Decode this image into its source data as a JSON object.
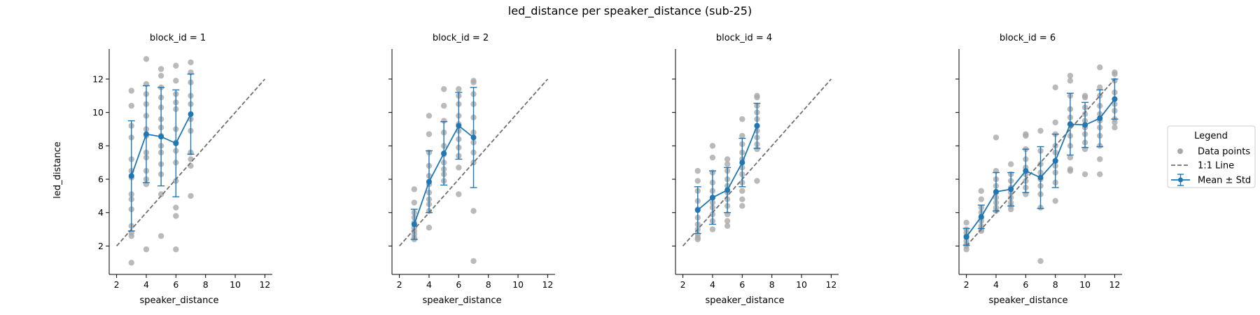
{
  "figure": {
    "title": "led_distance per speaker_distance (sub-25)"
  },
  "legend": {
    "title": "Legend",
    "placement": "right",
    "entries": [
      {
        "label": "Data points",
        "kind": "points",
        "color": "#a9a9a9"
      },
      {
        "label": "1:1 Line",
        "kind": "dashed-line",
        "color": "#707070"
      },
      {
        "label": "Mean ± Std",
        "kind": "errorbar-line",
        "color": "#1f77b4"
      }
    ]
  },
  "colors": {
    "points": "#a9a9a9",
    "identity_line": "#707070",
    "mean": "#1f77b4"
  },
  "chart_data": [
    {
      "type": "scatter",
      "title": "block_id = 1",
      "xlabel": "speaker_distance",
      "ylabel": "led_distance",
      "xlim": [
        1.5,
        12.5
      ],
      "ylim": [
        0.3,
        13.8
      ],
      "xticks": [
        2,
        4,
        6,
        8,
        10,
        12
      ],
      "yticks": [
        2,
        4,
        6,
        8,
        10,
        12
      ],
      "show_ytick_labels": true,
      "grid": false,
      "identity_line": {
        "x": [
          2,
          12
        ],
        "y": [
          2,
          12
        ]
      },
      "mean_std": [
        {
          "x": 3,
          "mean": 6.2,
          "std": 3.3
        },
        {
          "x": 4,
          "mean": 8.7,
          "std": 2.9
        },
        {
          "x": 5,
          "mean": 8.55,
          "std": 2.95
        },
        {
          "x": 6,
          "mean": 8.15,
          "std": 3.2
        },
        {
          "x": 7,
          "mean": 9.9,
          "std": 2.4
        }
      ],
      "points": [
        [
          3,
          11.3
        ],
        [
          3,
          10.4
        ],
        [
          3,
          9.2
        ],
        [
          3,
          8.5
        ],
        [
          3,
          7.2
        ],
        [
          3,
          6.5
        ],
        [
          3,
          6.1
        ],
        [
          3,
          5.1
        ],
        [
          3,
          4.8
        ],
        [
          3,
          4.2
        ],
        [
          3,
          3.2
        ],
        [
          3,
          2.8
        ],
        [
          3,
          2.6
        ],
        [
          3,
          1.0
        ],
        [
          4,
          13.2
        ],
        [
          4,
          11.7
        ],
        [
          4,
          11.1
        ],
        [
          4,
          10.5
        ],
        [
          4,
          9.8
        ],
        [
          4,
          9.0
        ],
        [
          4,
          8.6
        ],
        [
          4,
          7.6
        ],
        [
          4,
          7.3
        ],
        [
          4,
          6.5
        ],
        [
          4,
          6.0
        ],
        [
          4,
          5.7
        ],
        [
          4,
          1.8
        ],
        [
          5,
          12.6
        ],
        [
          5,
          12.2
        ],
        [
          5,
          11.5
        ],
        [
          5,
          10.9
        ],
        [
          5,
          10.3
        ],
        [
          5,
          9.6
        ],
        [
          5,
          9.1
        ],
        [
          5,
          8.6
        ],
        [
          5,
          8.0
        ],
        [
          5,
          7.6
        ],
        [
          5,
          6.9
        ],
        [
          5,
          6.3
        ],
        [
          5,
          5.1
        ],
        [
          5,
          2.6
        ],
        [
          6,
          12.8
        ],
        [
          6,
          11.9
        ],
        [
          6,
          11.1
        ],
        [
          6,
          10.6
        ],
        [
          6,
          10.2
        ],
        [
          6,
          9.0
        ],
        [
          6,
          8.2
        ],
        [
          6,
          7.7
        ],
        [
          6,
          7.0
        ],
        [
          6,
          5.9
        ],
        [
          6,
          4.3
        ],
        [
          6,
          3.8
        ],
        [
          6,
          1.8
        ],
        [
          7,
          13.0
        ],
        [
          7,
          12.4
        ],
        [
          7,
          11.8
        ],
        [
          7,
          11.0
        ],
        [
          7,
          10.5
        ],
        [
          7,
          9.6
        ],
        [
          7,
          8.9
        ],
        [
          7,
          7.6
        ],
        [
          7,
          7.2
        ],
        [
          7,
          6.8
        ],
        [
          7,
          5.0
        ]
      ]
    },
    {
      "type": "scatter",
      "title": "block_id = 2",
      "xlabel": "speaker_distance",
      "ylabel": "",
      "xlim": [
        1.5,
        12.5
      ],
      "ylim": [
        0.3,
        13.8
      ],
      "xticks": [
        2,
        4,
        6,
        8,
        10,
        12
      ],
      "yticks": [
        2,
        4,
        6,
        8,
        10,
        12
      ],
      "show_ytick_labels": false,
      "grid": false,
      "identity_line": {
        "x": [
          2,
          12
        ],
        "y": [
          2,
          12
        ]
      },
      "mean_std": [
        {
          "x": 3,
          "mean": 3.3,
          "std": 0.9
        },
        {
          "x": 4,
          "mean": 5.85,
          "std": 1.85
        },
        {
          "x": 5,
          "mean": 7.55,
          "std": 1.9
        },
        {
          "x": 6,
          "mean": 9.2,
          "std": 2.0
        },
        {
          "x": 7,
          "mean": 8.5,
          "std": 3.0
        }
      ],
      "points": [
        [
          3,
          5.4
        ],
        [
          3,
          4.6
        ],
        [
          3,
          4.0
        ],
        [
          3,
          3.7
        ],
        [
          3,
          3.4
        ],
        [
          3,
          3.1
        ],
        [
          3,
          2.9
        ],
        [
          3,
          2.7
        ],
        [
          3,
          2.5
        ],
        [
          3,
          2.4
        ],
        [
          4,
          9.8
        ],
        [
          4,
          8.7
        ],
        [
          4,
          7.6
        ],
        [
          4,
          6.8
        ],
        [
          4,
          6.2
        ],
        [
          4,
          5.7
        ],
        [
          4,
          5.2
        ],
        [
          4,
          4.8
        ],
        [
          4,
          4.5
        ],
        [
          4,
          4.1
        ],
        [
          4,
          3.1
        ],
        [
          5,
          11.4
        ],
        [
          5,
          10.4
        ],
        [
          5,
          9.5
        ],
        [
          5,
          8.8
        ],
        [
          5,
          8.0
        ],
        [
          5,
          7.5
        ],
        [
          5,
          7.0
        ],
        [
          5,
          6.6
        ],
        [
          5,
          6.3
        ],
        [
          5,
          5.9
        ],
        [
          6,
          11.4
        ],
        [
          6,
          11.0
        ],
        [
          6,
          10.5
        ],
        [
          6,
          9.8
        ],
        [
          6,
          9.3
        ],
        [
          6,
          8.9
        ],
        [
          6,
          8.4
        ],
        [
          6,
          7.9
        ],
        [
          6,
          7.4
        ],
        [
          6,
          6.7
        ],
        [
          6,
          5.1
        ],
        [
          7,
          11.9
        ],
        [
          7,
          11.8
        ],
        [
          7,
          11.1
        ],
        [
          7,
          10.5
        ],
        [
          7,
          9.7
        ],
        [
          7,
          8.8
        ],
        [
          7,
          8.2
        ],
        [
          7,
          7.6
        ],
        [
          7,
          7.0
        ],
        [
          7,
          4.1
        ],
        [
          7,
          1.1
        ]
      ]
    },
    {
      "type": "scatter",
      "title": "block_id = 4",
      "xlabel": "speaker_distance",
      "ylabel": "",
      "xlim": [
        1.5,
        12.5
      ],
      "ylim": [
        0.3,
        13.8
      ],
      "xticks": [
        2,
        4,
        6,
        8,
        10,
        12
      ],
      "yticks": [
        2,
        4,
        6,
        8,
        10,
        12
      ],
      "show_ytick_labels": false,
      "grid": false,
      "identity_line": {
        "x": [
          2,
          12
        ],
        "y": [
          2,
          12
        ]
      },
      "mean_std": [
        {
          "x": 3,
          "mean": 4.15,
          "std": 1.4
        },
        {
          "x": 4,
          "mean": 4.9,
          "std": 1.6
        },
        {
          "x": 5,
          "mean": 5.35,
          "std": 1.35
        },
        {
          "x": 6,
          "mean": 7.0,
          "std": 1.45
        },
        {
          "x": 7,
          "mean": 9.2,
          "std": 1.35
        }
      ],
      "points": [
        [
          3,
          6.5
        ],
        [
          3,
          5.9
        ],
        [
          3,
          5.3
        ],
        [
          3,
          4.7
        ],
        [
          3,
          4.2
        ],
        [
          3,
          3.7
        ],
        [
          3,
          3.3
        ],
        [
          3,
          3.0
        ],
        [
          3,
          2.7
        ],
        [
          3,
          2.5
        ],
        [
          3,
          2.4
        ],
        [
          4,
          8.0
        ],
        [
          4,
          7.3
        ],
        [
          4,
          6.4
        ],
        [
          4,
          5.8
        ],
        [
          4,
          5.3
        ],
        [
          4,
          4.9
        ],
        [
          4,
          4.6
        ],
        [
          4,
          4.3
        ],
        [
          4,
          3.9
        ],
        [
          4,
          3.5
        ],
        [
          4,
          3.0
        ],
        [
          5,
          7.2
        ],
        [
          5,
          6.9
        ],
        [
          5,
          6.5
        ],
        [
          5,
          6.0
        ],
        [
          5,
          5.6
        ],
        [
          5,
          5.2
        ],
        [
          5,
          4.8
        ],
        [
          5,
          4.4
        ],
        [
          5,
          3.9
        ],
        [
          5,
          3.5
        ],
        [
          5,
          3.2
        ],
        [
          6,
          9.6
        ],
        [
          6,
          8.6
        ],
        [
          6,
          8.1
        ],
        [
          6,
          7.6
        ],
        [
          6,
          7.2
        ],
        [
          6,
          6.7
        ],
        [
          6,
          6.3
        ],
        [
          6,
          5.8
        ],
        [
          6,
          5.3
        ],
        [
          6,
          4.8
        ],
        [
          6,
          4.4
        ],
        [
          7,
          11.0
        ],
        [
          7,
          10.9
        ],
        [
          7,
          10.4
        ],
        [
          7,
          10.0
        ],
        [
          7,
          9.6
        ],
        [
          7,
          9.2
        ],
        [
          7,
          8.9
        ],
        [
          7,
          8.5
        ],
        [
          7,
          8.1
        ],
        [
          7,
          7.8
        ],
        [
          7,
          5.9
        ]
      ]
    },
    {
      "type": "scatter",
      "title": "block_id = 6",
      "xlabel": "speaker_distance",
      "ylabel": "",
      "xlim": [
        1.5,
        12.5
      ],
      "ylim": [
        0.3,
        13.8
      ],
      "xticks": [
        2,
        4,
        6,
        8,
        10,
        12
      ],
      "yticks": [
        2,
        4,
        6,
        8,
        10,
        12
      ],
      "show_ytick_labels": false,
      "grid": false,
      "identity_line": {
        "x": [
          2,
          12
        ],
        "y": [
          2,
          12
        ]
      },
      "mean_std": [
        {
          "x": 2,
          "mean": 2.55,
          "std": 0.5
        },
        {
          "x": 3,
          "mean": 3.75,
          "std": 0.7
        },
        {
          "x": 4,
          "mean": 5.25,
          "std": 1.15
        },
        {
          "x": 5,
          "mean": 5.4,
          "std": 1.0
        },
        {
          "x": 6,
          "mean": 6.5,
          "std": 1.3
        },
        {
          "x": 7,
          "mean": 6.1,
          "std": 1.85
        },
        {
          "x": 8,
          "mean": 7.1,
          "std": 1.6
        },
        {
          "x": 9,
          "mean": 9.3,
          "std": 1.85
        },
        {
          "x": 10,
          "mean": 9.25,
          "std": 1.35
        },
        {
          "x": 11,
          "mean": 9.65,
          "std": 1.7
        },
        {
          "x": 12,
          "mean": 10.8,
          "std": 1.2
        }
      ],
      "points": [
        [
          2,
          3.4
        ],
        [
          2,
          3.0
        ],
        [
          2,
          2.8
        ],
        [
          2,
          2.6
        ],
        [
          2,
          2.5
        ],
        [
          2,
          2.3
        ],
        [
          2,
          2.1
        ],
        [
          2,
          2.0
        ],
        [
          2,
          1.8
        ],
        [
          3,
          5.3
        ],
        [
          3,
          4.8
        ],
        [
          3,
          4.3
        ],
        [
          3,
          4.0
        ],
        [
          3,
          3.7
        ],
        [
          3,
          3.5
        ],
        [
          3,
          3.2
        ],
        [
          3,
          3.0
        ],
        [
          3,
          2.9
        ],
        [
          4,
          8.5
        ],
        [
          4,
          6.5
        ],
        [
          4,
          6.0
        ],
        [
          4,
          5.6
        ],
        [
          4,
          5.2
        ],
        [
          4,
          4.9
        ],
        [
          4,
          4.6
        ],
        [
          4,
          4.3
        ],
        [
          4,
          4.1
        ],
        [
          5,
          6.9
        ],
        [
          5,
          6.3
        ],
        [
          5,
          5.9
        ],
        [
          5,
          5.5
        ],
        [
          5,
          5.2
        ],
        [
          5,
          4.9
        ],
        [
          5,
          4.6
        ],
        [
          5,
          4.4
        ],
        [
          5,
          4.2
        ],
        [
          6,
          8.7
        ],
        [
          6,
          8.6
        ],
        [
          6,
          7.8
        ],
        [
          6,
          7.2
        ],
        [
          6,
          6.7
        ],
        [
          6,
          6.3
        ],
        [
          6,
          5.9
        ],
        [
          6,
          5.5
        ],
        [
          6,
          5.1
        ],
        [
          7,
          8.9
        ],
        [
          7,
          7.7
        ],
        [
          7,
          6.9
        ],
        [
          7,
          6.4
        ],
        [
          7,
          6.0
        ],
        [
          7,
          5.6
        ],
        [
          7,
          5.1
        ],
        [
          7,
          4.3
        ],
        [
          7,
          1.1
        ],
        [
          8,
          11.5
        ],
        [
          8,
          9.4
        ],
        [
          8,
          8.7
        ],
        [
          8,
          8.0
        ],
        [
          8,
          7.6
        ],
        [
          8,
          7.1
        ],
        [
          8,
          6.8
        ],
        [
          8,
          6.4
        ],
        [
          8,
          5.8
        ],
        [
          8,
          4.7
        ],
        [
          9,
          12.2
        ],
        [
          9,
          11.9
        ],
        [
          9,
          11.0
        ],
        [
          9,
          10.2
        ],
        [
          9,
          9.7
        ],
        [
          9,
          9.3
        ],
        [
          9,
          8.6
        ],
        [
          9,
          8.0
        ],
        [
          9,
          7.3
        ],
        [
          9,
          6.6
        ],
        [
          9,
          6.5
        ],
        [
          10,
          11.0
        ],
        [
          10,
          10.9
        ],
        [
          10,
          10.3
        ],
        [
          10,
          9.9
        ],
        [
          10,
          9.5
        ],
        [
          10,
          9.1
        ],
        [
          10,
          8.7
        ],
        [
          10,
          8.2
        ],
        [
          10,
          7.8
        ],
        [
          10,
          6.3
        ],
        [
          11,
          12.7
        ],
        [
          11,
          11.5
        ],
        [
          11,
          11.0
        ],
        [
          11,
          10.4
        ],
        [
          11,
          9.9
        ],
        [
          11,
          9.5
        ],
        [
          11,
          9.1
        ],
        [
          11,
          8.6
        ],
        [
          11,
          8.0
        ],
        [
          11,
          7.2
        ],
        [
          11,
          6.3
        ],
        [
          12,
          12.4
        ],
        [
          12,
          12.3
        ],
        [
          12,
          11.9
        ],
        [
          12,
          11.2
        ],
        [
          12,
          10.8
        ],
        [
          12,
          10.5
        ],
        [
          12,
          10.1
        ],
        [
          12,
          9.6
        ],
        [
          12,
          9.4
        ],
        [
          12,
          9.1
        ]
      ]
    }
  ]
}
